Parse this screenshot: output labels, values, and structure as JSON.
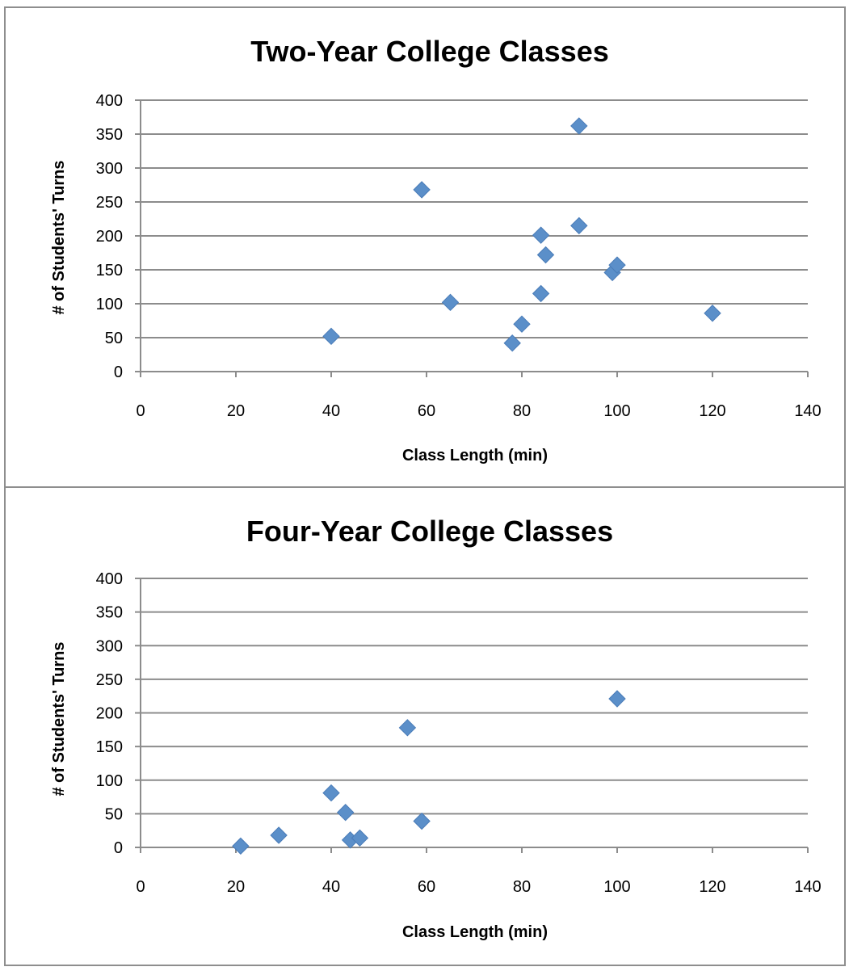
{
  "chart_data": [
    {
      "type": "scatter",
      "title": "Two-Year College Classes",
      "xlabel": "Class Length (min)",
      "ylabel": "# of Students' Turns",
      "xlim": [
        0,
        140
      ],
      "ylim": [
        0,
        400
      ],
      "x_ticks": [
        "0",
        "20",
        "40",
        "60",
        "80",
        "100",
        "120",
        "140"
      ],
      "y_ticks": [
        "0",
        "50",
        "100",
        "150",
        "200",
        "250",
        "300",
        "350",
        "400"
      ],
      "grid": "horizontal",
      "legend": "none",
      "marker": "diamond",
      "color": "#5b8fc9",
      "points": [
        {
          "x": 40,
          "y": 52
        },
        {
          "x": 59,
          "y": 268
        },
        {
          "x": 65,
          "y": 102
        },
        {
          "x": 78,
          "y": 42
        },
        {
          "x": 80,
          "y": 70
        },
        {
          "x": 84,
          "y": 201
        },
        {
          "x": 84,
          "y": 115
        },
        {
          "x": 85,
          "y": 172
        },
        {
          "x": 92,
          "y": 362
        },
        {
          "x": 92,
          "y": 215
        },
        {
          "x": 99,
          "y": 146
        },
        {
          "x": 100,
          "y": 157
        },
        {
          "x": 120,
          "y": 86
        }
      ]
    },
    {
      "type": "scatter",
      "title": "Four-Year College Classes",
      "xlabel": "Class Length (min)",
      "ylabel": "# of Students' Turns",
      "xlim": [
        0,
        140
      ],
      "ylim": [
        0,
        400
      ],
      "x_ticks": [
        "0",
        "20",
        "40",
        "60",
        "80",
        "100",
        "120",
        "140"
      ],
      "y_ticks": [
        "0",
        "50",
        "100",
        "150",
        "200",
        "250",
        "300",
        "350",
        "400"
      ],
      "grid": "horizontal",
      "legend": "none",
      "marker": "diamond",
      "color": "#5b8fc9",
      "points": [
        {
          "x": 21,
          "y": 2
        },
        {
          "x": 29,
          "y": 18
        },
        {
          "x": 40,
          "y": 81
        },
        {
          "x": 43,
          "y": 52
        },
        {
          "x": 44,
          "y": 11
        },
        {
          "x": 46,
          "y": 14
        },
        {
          "x": 56,
          "y": 178
        },
        {
          "x": 59,
          "y": 39
        },
        {
          "x": 100,
          "y": 221
        }
      ]
    }
  ]
}
